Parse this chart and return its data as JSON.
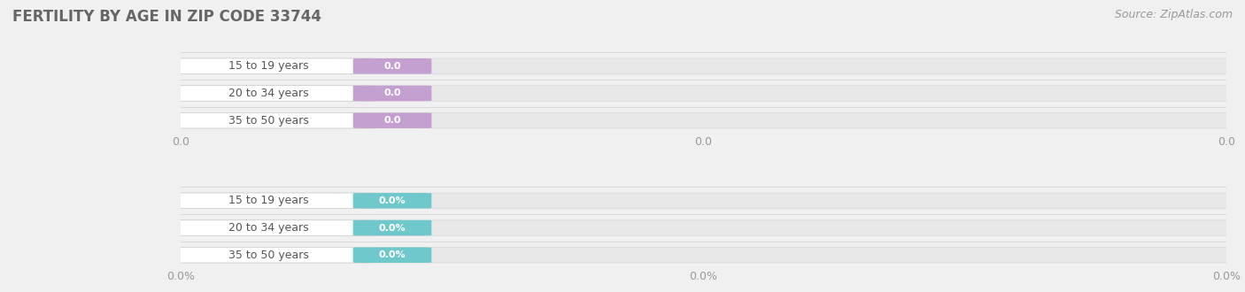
{
  "title": "FERTILITY BY AGE IN ZIP CODE 33744",
  "source_text": "Source: ZipAtlas.com",
  "background_color": "#f0f0f0",
  "bar_bg_color": "#e8e8e8",
  "bar_bg_edge_color": "#d8d8d8",
  "label_pill_color": "#ffffff",
  "label_pill_edge": "#cccccc",
  "sep_line_color": "#d8d8d8",
  "section1": {
    "categories": [
      "15 to 19 years",
      "20 to 34 years",
      "35 to 50 years"
    ],
    "values": [
      0.0,
      0.0,
      0.0
    ],
    "value_labels": [
      "0.0",
      "0.0",
      "0.0"
    ],
    "bar_color": "#c4a0d0",
    "tick_labels": [
      "0.0",
      "0.0",
      "0.0"
    ]
  },
  "section2": {
    "categories": [
      "15 to 19 years",
      "20 to 34 years",
      "35 to 50 years"
    ],
    "values": [
      0.0,
      0.0,
      0.0
    ],
    "value_labels": [
      "0.0%",
      "0.0%",
      "0.0%"
    ],
    "bar_color": "#6ec8cc",
    "tick_labels": [
      "0.0%",
      "0.0%",
      "0.0%"
    ]
  },
  "figsize": [
    14.06,
    3.3
  ],
  "dpi": 100,
  "title_fontsize": 12,
  "title_color": "#666666",
  "source_fontsize": 9,
  "source_color": "#999999",
  "category_fontsize": 9,
  "category_color": "#555555",
  "value_fontsize": 8,
  "tick_fontsize": 9,
  "tick_color": "#999999"
}
